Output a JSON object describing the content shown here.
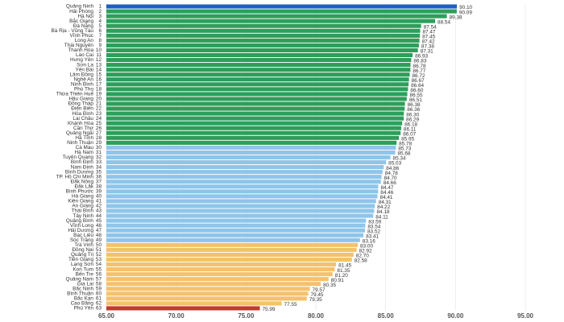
{
  "chart_data": {
    "type": "barh",
    "categories": [
      "Quảng Ninh",
      "Hải Phòng",
      "Hà Nội",
      "Bắc Giang",
      "Đà Nẵng",
      "Bà Rịa - Vũng Tàu",
      "Vĩnh Phúc",
      "Long An",
      "Thái Nguyên",
      "Thanh Hóa",
      "Lào Cai",
      "Hưng Yên",
      "Sơn La",
      "Yên Bái",
      "Lâm Đồng",
      "Nghệ An",
      "Ninh Bình",
      "Phú Thọ",
      "Thừa Thiên Huế",
      "Hậu Giang",
      "Đồng Tháp",
      "Điện Biên",
      "Hòa Bình",
      "Lai Châu",
      "Khánh Hòa",
      "Cần Thơ",
      "Quảng Ngãi",
      "Hà Tĩnh",
      "Ninh Thuận",
      "Cà Mau",
      "Hà Nam",
      "Tuyên Quang",
      "Bình Định",
      "Nam Định",
      "Bình Dương",
      "TP. Hồ Chí Minh",
      "Đắk Nông",
      "Đắk Lắk",
      "Bình Phước",
      "Hà Giang",
      "Kiên Giang",
      "An Giang",
      "Thái Bình",
      "Tây Ninh",
      "Quảng Bình",
      "Vĩnh Long",
      "Hải Dương",
      "Bạc Liêu",
      "Sóc Trăng",
      "Trà Vinh",
      "Đồng Nai",
      "Quảng Trị",
      "Tiền Giang",
      "Lạng Sơn",
      "Kon Tum",
      "Bến Tre",
      "Quảng Nam",
      "Gia Lai",
      "Bắc Ninh",
      "Bình Thuận",
      "Bắc Kạn",
      "Cao Bằng",
      "Phú Yên"
    ],
    "ranks": [
      1,
      2,
      3,
      4,
      5,
      6,
      7,
      8,
      9,
      10,
      11,
      12,
      13,
      14,
      15,
      16,
      17,
      18,
      19,
      20,
      21,
      22,
      23,
      24,
      25,
      26,
      27,
      28,
      29,
      30,
      31,
      32,
      33,
      34,
      35,
      36,
      37,
      38,
      39,
      40,
      41,
      42,
      43,
      44,
      45,
      46,
      47,
      48,
      49,
      50,
      51,
      52,
      53,
      54,
      55,
      56,
      57,
      58,
      59,
      60,
      61,
      62,
      63
    ],
    "values": [
      90.1,
      90.09,
      89.38,
      88.54,
      87.54,
      87.47,
      87.45,
      87.42,
      87.38,
      87.31,
      86.93,
      86.83,
      86.78,
      86.77,
      86.72,
      86.67,
      86.64,
      86.6,
      86.55,
      86.51,
      86.38,
      86.36,
      86.3,
      86.29,
      86.18,
      86.11,
      86.07,
      85.95,
      85.78,
      85.73,
      85.68,
      85.34,
      85.03,
      84.86,
      84.78,
      84.7,
      84.66,
      84.47,
      84.46,
      84.41,
      84.31,
      84.22,
      84.18,
      84.11,
      83.59,
      83.54,
      83.52,
      83.41,
      83.16,
      83,
      82.92,
      82.7,
      82.58,
      81.45,
      81.35,
      81.2,
      80.91,
      80.35,
      79.57,
      79.45,
      79.35,
      77.55,
      75.99
    ],
    "value_labels": [
      "90.10",
      "90.09",
      "89.38",
      "88.54",
      "87.54",
      "87.47",
      "87.45",
      "87.42",
      "87.38",
      "87.31",
      "86.93",
      "86.83",
      "86.78",
      "86.77",
      "86.72",
      "86.67",
      "86.64",
      "86.60",
      "86.55",
      "86.51",
      "86.38",
      "86.36",
      "86.30",
      "86.29",
      "86.18",
      "86.11",
      "86.07",
      "85.95",
      "85.78",
      "85.73",
      "85.68",
      "85.34",
      "85.03",
      "84.86",
      "84.78",
      "84.70",
      "84.66",
      "84.47",
      "84.46",
      "84.41",
      "84.31",
      "84.22",
      "84.18",
      "84.11",
      "83.59",
      "83.54",
      "83.52",
      "83.41",
      "83.16",
      "83.00",
      "82.92",
      "82.70",
      "82.58",
      "81.45",
      "81.35",
      "81.20",
      "80.91",
      "80.35",
      "79.57",
      "79.45",
      "79.35",
      "77.55",
      "75.99"
    ],
    "colors": [
      "#1f5fbf",
      "#2e9e5b",
      "#2e9e5b",
      "#2e9e5b",
      "#2e9e5b",
      "#2e9e5b",
      "#2e9e5b",
      "#2e9e5b",
      "#2e9e5b",
      "#2e9e5b",
      "#2e9e5b",
      "#2e9e5b",
      "#2e9e5b",
      "#2e9e5b",
      "#2e9e5b",
      "#2e9e5b",
      "#2e9e5b",
      "#2e9e5b",
      "#2e9e5b",
      "#2e9e5b",
      "#2e9e5b",
      "#2e9e5b",
      "#2e9e5b",
      "#2e9e5b",
      "#2e9e5b",
      "#2e9e5b",
      "#2e9e5b",
      "#2e9e5b",
      "#2e9e5b",
      "#8ec5ea",
      "#8ec5ea",
      "#8ec5ea",
      "#8ec5ea",
      "#8ec5ea",
      "#8ec5ea",
      "#8ec5ea",
      "#8ec5ea",
      "#8ec5ea",
      "#8ec5ea",
      "#8ec5ea",
      "#8ec5ea",
      "#8ec5ea",
      "#8ec5ea",
      "#8ec5ea",
      "#8ec5ea",
      "#8ec5ea",
      "#8ec5ea",
      "#8ec5ea",
      "#8ec5ea",
      "#f5c16c",
      "#f5c16c",
      "#f5c16c",
      "#f5c16c",
      "#f5c16c",
      "#f5c16c",
      "#f5c16c",
      "#f5c16c",
      "#f5c16c",
      "#f5c16c",
      "#f5c16c",
      "#f5c16c",
      "#f5c16c",
      "#c0392b"
    ],
    "xlim": [
      65,
      95
    ],
    "xticks": [
      {
        "value": 65,
        "label": "65.00"
      },
      {
        "value": 70,
        "label": "70.00"
      },
      {
        "value": 75,
        "label": "75.00"
      },
      {
        "value": 80,
        "label": "80.00"
      },
      {
        "value": 85,
        "label": "85.00"
      },
      {
        "value": 90,
        "label": "90.00"
      },
      {
        "value": 95,
        "label": "95.00"
      }
    ],
    "grid": true
  }
}
